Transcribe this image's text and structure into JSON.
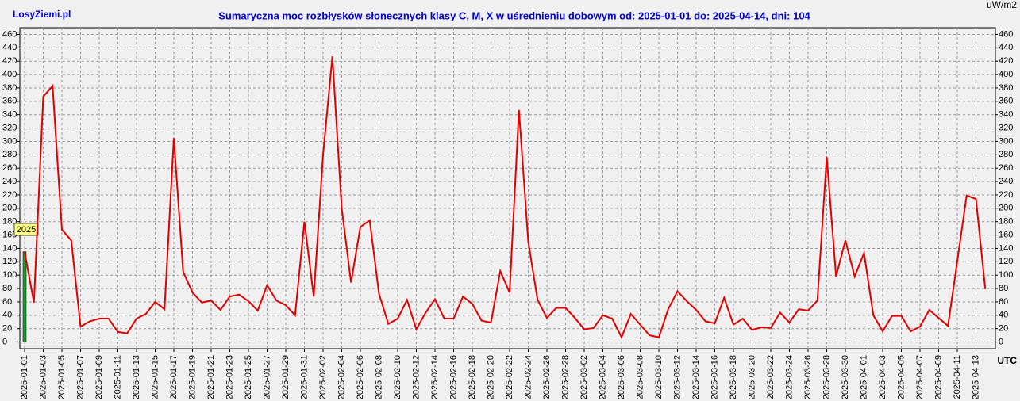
{
  "site": "LosyZiemi.pl",
  "chart_data": {
    "type": "line",
    "title": "Sumaryczna moc rozbłysków słonecznych klasy C, M, X w uśrednieniu dobowym od: 2025-01-01 do: 2025-04-14, dni: 104",
    "y_unit": "uW/m2",
    "x_unit": "UTC",
    "year_marker": "2025",
    "categories": [
      "2025-01-01",
      null,
      "2025-01-03",
      null,
      "2025-01-05",
      null,
      "2025-01-07",
      null,
      "2025-01-09",
      null,
      "2025-01-11",
      null,
      "2025-01-13",
      null,
      "2025-01-15",
      null,
      "2025-01-17",
      null,
      "2025-01-19",
      null,
      "2025-01-21",
      null,
      "2025-01-23",
      null,
      "2025-01-25",
      null,
      "2025-01-27",
      null,
      "2025-01-29",
      null,
      "2025-01-31",
      null,
      "2025-02-02",
      null,
      "2025-02-04",
      null,
      "2025-02-06",
      null,
      "2025-02-08",
      null,
      "2025-02-10",
      null,
      "2025-02-12",
      null,
      "2025-02-14",
      null,
      "2025-02-16",
      null,
      "2025-02-18",
      null,
      "2025-02-20",
      null,
      "2025-02-22",
      null,
      "2025-02-24",
      null,
      "2025-02-26",
      null,
      "2025-02-28",
      null,
      "2025-03-02",
      null,
      "2025-03-04",
      null,
      "2025-03-06",
      null,
      "2025-03-08",
      null,
      "2025-03-10",
      null,
      "2025-03-12",
      null,
      "2025-03-14",
      null,
      "2025-03-16",
      null,
      "2025-03-18",
      null,
      "2025-03-20",
      null,
      "2025-03-22",
      null,
      "2025-03-24",
      null,
      "2025-03-26",
      null,
      "2025-03-28",
      null,
      "2025-03-30",
      null,
      "2025-04-01",
      null,
      "2025-04-03",
      null,
      "2025-04-05",
      null,
      "2025-04-07",
      null,
      "2025-04-09",
      null,
      "2025-04-11",
      null,
      "2025-04-13",
      null
    ],
    "values": [
      135,
      59,
      367,
      383,
      168,
      152,
      23,
      31,
      35,
      35,
      15,
      13,
      35,
      42,
      60,
      49,
      305,
      105,
      74,
      59,
      62,
      48,
      68,
      71,
      61,
      47,
      85,
      62,
      55,
      40,
      180,
      68,
      280,
      427,
      200,
      89,
      172,
      182,
      72,
      27,
      35,
      63,
      19,
      44,
      64,
      35,
      35,
      68,
      57,
      32,
      29,
      106,
      74,
      347,
      150,
      63,
      36,
      51,
      51,
      36,
      19,
      21,
      40,
      35,
      7,
      42,
      26,
      10,
      7,
      49,
      76,
      61,
      48,
      31,
      28,
      66,
      26,
      35,
      18,
      22,
      21,
      44,
      29,
      49,
      47,
      62,
      277,
      98,
      152,
      98,
      133,
      40,
      16,
      39,
      39,
      16,
      23,
      48,
      36,
      24,
      121,
      219,
      214,
      79
    ],
    "color": "#e00000",
    "marker_color": "#1f9e2a",
    "ylim": [
      -10,
      470
    ],
    "yticks": [
      0,
      20,
      40,
      60,
      80,
      100,
      120,
      140,
      160,
      180,
      200,
      220,
      240,
      260,
      280,
      300,
      320,
      340,
      360,
      380,
      400,
      420,
      440,
      460
    ],
    "grid": true
  }
}
